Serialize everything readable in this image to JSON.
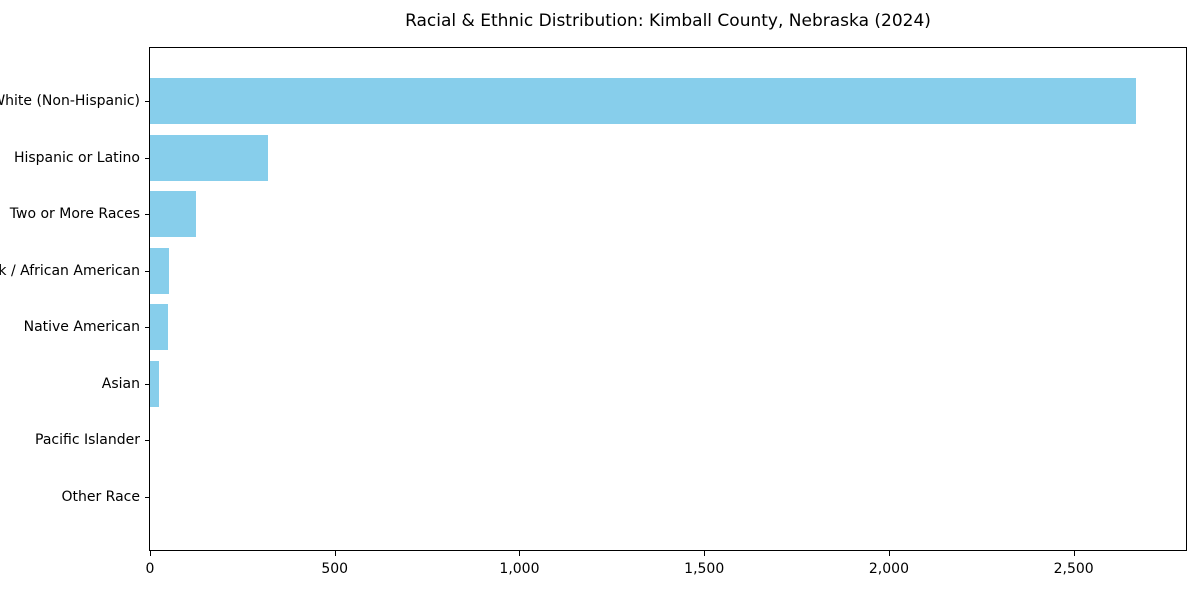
{
  "chart_data": {
    "type": "bar",
    "orientation": "horizontal",
    "title": "Racial & Ethnic Distribution: Kimball County, Nebraska (2024)",
    "categories": [
      "White (Non-Hispanic)",
      "Hispanic or Latino",
      "Two or More Races",
      "Black / African American",
      "Native American",
      "Asian",
      "Pacific Islander",
      "Other Race"
    ],
    "values": [
      2670,
      320,
      125,
      52,
      50,
      25,
      0,
      0
    ],
    "bar_color": "#87CEEB",
    "xlabel": "",
    "ylabel": "",
    "xlim": [
      0,
      2804
    ],
    "x_ticks": [
      0,
      500,
      1000,
      1500,
      2000,
      2500
    ],
    "x_tick_labels": [
      "0",
      "500",
      "1,000",
      "1,500",
      "2,000",
      "2,500"
    ],
    "grid": false,
    "legend": "none",
    "background_color": "#ffffff",
    "text_color": "#000000"
  }
}
